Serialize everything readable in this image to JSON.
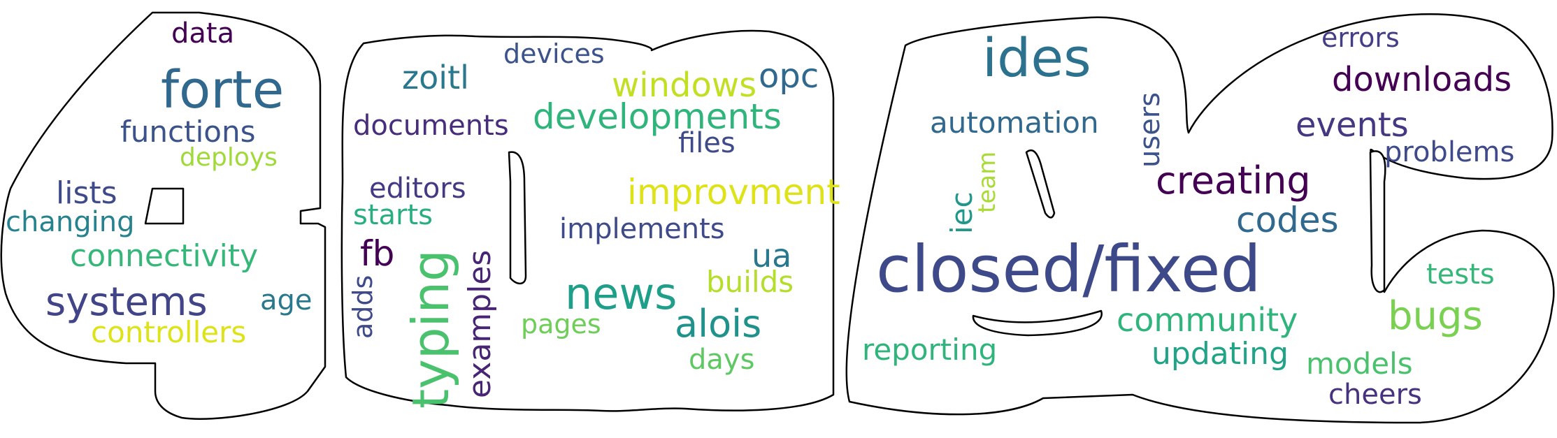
{
  "colors": {
    "outline": "#000000",
    "background": "#ffffff"
  },
  "words": [
    {
      "text": "data",
      "color": "#440154"
    },
    {
      "text": "forte",
      "color": "#31688e"
    },
    {
      "text": "functions",
      "color": "#3b528b"
    },
    {
      "text": "deploys",
      "color": "#a0da39"
    },
    {
      "text": "lists",
      "color": "#3e4a89"
    },
    {
      "text": "changing",
      "color": "#26828e"
    },
    {
      "text": "connectivity",
      "color": "#35b779"
    },
    {
      "text": "systems",
      "color": "#414487"
    },
    {
      "text": "age",
      "color": "#2a788e"
    },
    {
      "text": "controllers",
      "color": "#dde318"
    },
    {
      "text": "devices",
      "color": "#3b528b"
    },
    {
      "text": "zoitl",
      "color": "#2a788e"
    },
    {
      "text": "windows",
      "color": "#c2df23"
    },
    {
      "text": "opc",
      "color": "#31688e"
    },
    {
      "text": "documents",
      "color": "#472d7b"
    },
    {
      "text": "developments",
      "color": "#2fb47c"
    },
    {
      "text": "files",
      "color": "#3e4a89"
    },
    {
      "text": "improvment",
      "color": "#dde318"
    },
    {
      "text": "editors",
      "color": "#443983"
    },
    {
      "text": "starts",
      "color": "#28ae80"
    },
    {
      "text": "implements",
      "color": "#3e4a89"
    },
    {
      "text": "fb",
      "color": "#440154"
    },
    {
      "text": "ua",
      "color": "#2a788e"
    },
    {
      "text": "builds",
      "color": "#b5de2b"
    },
    {
      "text": "news",
      "color": "#1f9e89"
    },
    {
      "text": "alois",
      "color": "#20928c"
    },
    {
      "text": "pages",
      "color": "#6ece58"
    },
    {
      "text": "days",
      "color": "#5ec962"
    },
    {
      "text": "typing",
      "color": "#4ac16d"
    },
    {
      "text": "examples",
      "color": "#482475"
    },
    {
      "text": "adds",
      "color": "#3e4a89"
    },
    {
      "text": "ides",
      "color": "#2c728e"
    },
    {
      "text": "automation",
      "color": "#31688e"
    },
    {
      "text": "users",
      "color": "#3b528b"
    },
    {
      "text": "team",
      "color": "#a8db34"
    },
    {
      "text": "iec",
      "color": "#1f988b"
    },
    {
      "text": "closed/fixed",
      "color": "#3e4989"
    },
    {
      "text": "errors",
      "color": "#433e85"
    },
    {
      "text": "downloads",
      "color": "#440154"
    },
    {
      "text": "events",
      "color": "#453781"
    },
    {
      "text": "problems",
      "color": "#3e4a89"
    },
    {
      "text": "creating",
      "color": "#440154"
    },
    {
      "text": "codes",
      "color": "#31688e"
    },
    {
      "text": "tests",
      "color": "#35b779"
    },
    {
      "text": "community",
      "color": "#2fb47c"
    },
    {
      "text": "bugs",
      "color": "#7ad151"
    },
    {
      "text": "reporting",
      "color": "#2fb47c"
    },
    {
      "text": "updating",
      "color": "#20a386"
    },
    {
      "text": "models",
      "color": "#4ac16d"
    },
    {
      "text": "cheers",
      "color": "#46327e"
    }
  ]
}
